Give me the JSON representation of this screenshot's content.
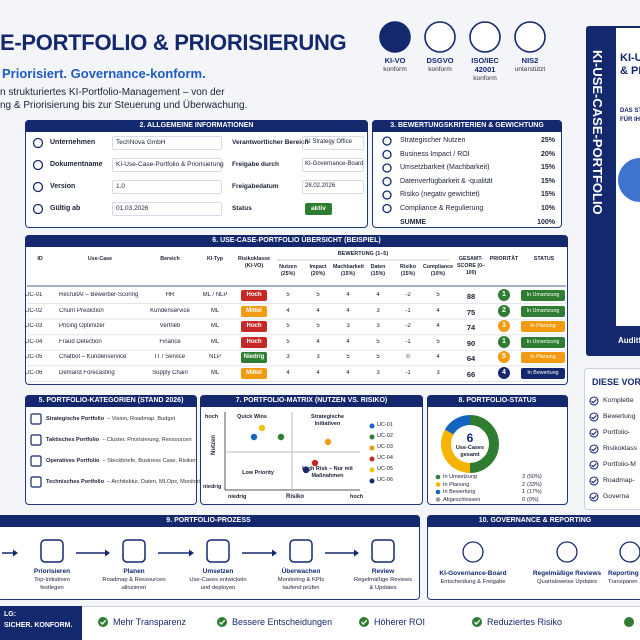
{
  "header": {
    "title": "E-PORTFOLIO & PRIORISIERUNG",
    "subtitle": "Priorisiert. Governance-konform.",
    "description": [
      "n strukturiertes KI-Portfolio-Management – von der",
      "ng & Priorisierung bis zur Steuerung und Überwachung."
    ]
  },
  "badges": [
    {
      "label": "KI-VO",
      "sub": "konform"
    },
    {
      "label": "DSGVO",
      "sub": "konform"
    },
    {
      "label": "ISO/IEC 42001",
      "sub": "konform"
    },
    {
      "label": "NIS2",
      "sub": "unterstützt"
    }
  ],
  "book": {
    "spine": "KI-USE-CASE-PORTFOLIO",
    "cover": [
      "KI-U",
      "& PRI"
    ],
    "cover_text": [
      "DAS STR",
      "FÜR IHR"
    ],
    "footer": "Auditfähi"
  },
  "info": {
    "title": "2. ALLGEMEINE INFORMATIONEN",
    "left": [
      [
        "Unternehmen",
        "TechNova GmbH"
      ],
      [
        "Dokumentname",
        "KI-Use-Case-Portfolio & Priorisierung"
      ],
      [
        "Version",
        "1.0"
      ],
      [
        "Gültig ab",
        "01.03.2026"
      ]
    ],
    "right": [
      [
        "Verantwortlicher Bereich",
        "AI Strategy Office"
      ],
      [
        "Freigabe durch",
        "KI-Governance-Board"
      ],
      [
        "Freigabedatum",
        "28.02.2026"
      ],
      [
        "Status",
        "aktiv"
      ]
    ]
  },
  "criteria": {
    "title": "3. BEWERTUNGSKRITERIEN & GEWICHTUNG",
    "items": [
      [
        "Strategischer Nutzen",
        "25%"
      ],
      [
        "Business Impact / ROI",
        "20%"
      ],
      [
        "Umsetzbarkeit (Machbarkeit)",
        "15%"
      ],
      [
        "Datenverfügbarkeit & -qualität",
        "15%"
      ],
      [
        "Risiko (negativ gewichtet)",
        "15%"
      ],
      [
        "Compliance & Regulierung",
        "10%"
      ]
    ],
    "total": [
      "SUMME",
      "100%"
    ]
  },
  "table": {
    "title": "6. USE-CASE-PORTFOLIO ÜBERSICHT (BEISPIEL)",
    "group_header": "BEWERTUNG (1–5)",
    "columns": [
      "ID",
      "Use-Case",
      "Bereich",
      "KI-Typ",
      "Risikoklasse (KI-VO)",
      "Nutzen (25%)",
      "Impact (20%)",
      "Machbarkeit (15%)",
      "Daten (15%)",
      "Risiko (15%)",
      "Compliance (10%)",
      "GESAMT-SCORE (0–100)",
      "PRIORITÄT",
      "STATUS"
    ],
    "rows": [
      {
        "cells": [
          "UC-01",
          "RecruitAI – Bewerber-Scoring",
          "HR",
          "ML / NLP",
          "Hoch",
          5,
          5,
          4,
          4,
          -2,
          5,
          88,
          1,
          "In Umsetzung"
        ],
        "risk_color": "#c62828",
        "priority_color": "#2e7d32",
        "status_color": "#2e7d32"
      },
      {
        "cells": [
          "UC-02",
          "Churn Prediction",
          "Kundenservice",
          "ML",
          "Mittel",
          4,
          4,
          4,
          3,
          -1,
          4,
          75,
          2,
          "In Umsetzung"
        ],
        "risk_color": "#f29b11",
        "priority_color": "#2e7d32",
        "status_color": "#2e7d32"
      },
      {
        "cells": [
          "UC-03",
          "Pricing Optimizer",
          "Vertrieb",
          "ML",
          "Hoch",
          5,
          5,
          3,
          3,
          -2,
          4,
          74,
          3,
          "In Planung"
        ],
        "risk_color": "#c62828",
        "priority_color": "#f29b11",
        "status_color": "#f29b11"
      },
      {
        "cells": [
          "UC-04",
          "Fraud Detection",
          "Finance",
          "ML",
          "Hoch",
          5,
          4,
          4,
          5,
          -1,
          5,
          90,
          1,
          "In Umsetzung"
        ],
        "risk_color": "#c62828",
        "priority_color": "#2e7d32",
        "status_color": "#2e7d32"
      },
      {
        "cells": [
          "UC-05",
          "Chatbot – Kundenservice",
          "IT / Service",
          "NLP",
          "Niedrig",
          3,
          3,
          5,
          5,
          0,
          4,
          64,
          5,
          "In Planung"
        ],
        "risk_color": "#2e7d32",
        "priority_color": "#f29b11",
        "status_color": "#f29b11"
      },
      {
        "cells": [
          "UC-06",
          "Demand Forecasting",
          "Supply Chain",
          "ML",
          "Mittel",
          4,
          4,
          4,
          3,
          -1,
          3,
          66,
          4,
          "In Bewertung"
        ],
        "risk_color": "#f29b11",
        "priority_color": "#14286e",
        "status_color": "#14286e"
      }
    ]
  },
  "categories": {
    "title": "5. PORTFOLIO-KATEGORIEN (STAND 2026)",
    "items": [
      {
        "name": "Strategische Portfolio",
        "desc": "– Vision, Roadmap, Budget"
      },
      {
        "name": "Taktisches Portfolio",
        "desc": "– Cluster, Priorisierung, Ressourcen"
      },
      {
        "name": "Operatives Portfolio",
        "desc": "– Steckbriefe, Business Case, Risiken"
      },
      {
        "name": "Technisches Portfolio",
        "desc": "– Architektur, Daten, MLOps, Monitoring"
      }
    ]
  },
  "matrix": {
    "title": "7. PORTFOLIO-MATRIX (NUTZEN VS. RISIKO)",
    "y_axis": "Nutzen",
    "x_axis": "Risiko",
    "y_high": "hoch",
    "y_low": "niedrig",
    "x_low": "niedrig",
    "x_high": "hoch",
    "quadrants": [
      "Quick Wins",
      "Strategische Initiativen",
      "Low Priority",
      "High Risk – Nur mit Maßnahmen"
    ],
    "legend": [
      {
        "name": "UC-01",
        "color": "#1565c0"
      },
      {
        "name": "UC-02",
        "color": "#2e7d32"
      },
      {
        "name": "UC-03",
        "color": "#f29b11"
      },
      {
        "name": "UC-04",
        "color": "#c62828"
      },
      {
        "name": "UC-05",
        "color": "#f4c20d"
      },
      {
        "name": "UC-06",
        "color": "#14286e"
      }
    ]
  },
  "status": {
    "title": "8. PORTFOLIO-STATUS",
    "total": 6,
    "total_label": "Use-Cases gesamt",
    "items": [
      {
        "label": "In Umsetzung",
        "count": 3,
        "pct": "(50%)",
        "color": "#2e7d32"
      },
      {
        "label": "In Planung",
        "count": 2,
        "pct": "(33%)",
        "color": "#f4b400"
      },
      {
        "label": "In Bewertung",
        "count": 1,
        "pct": "(17%)",
        "color": "#1565c0"
      },
      {
        "label": "Abgeschlossen",
        "count": 0,
        "pct": "(0%)",
        "color": "#9e9e9e"
      }
    ]
  },
  "process": {
    "title": "9. PORTFOLIO-PROZESS",
    "steps": [
      {
        "title": "Priorisieren",
        "text": [
          "Top-Initiativen",
          "festlegen"
        ]
      },
      {
        "title": "Planen",
        "text": [
          "Roadmap & Ressourcen",
          "allozieren"
        ]
      },
      {
        "title": "Umsetzen",
        "text": [
          "Use-Cases entwickeln",
          "und deployen"
        ]
      },
      {
        "title": "Überwachen",
        "text": [
          "Monitoring & KPIs",
          "laufend prüfen"
        ]
      },
      {
        "title": "Review",
        "text": [
          "Regelmäßige Reviews",
          "& Updates"
        ]
      }
    ]
  },
  "governance": {
    "title": "10. GOVERNANCE & REPORTING",
    "items": [
      {
        "title": "KI-Governance-Board",
        "text": "Entscheidung & Freigabe"
      },
      {
        "title": "Regelmäßige Reviews",
        "text": "Quartalsweise Updates"
      },
      {
        "title": "Reporting",
        "text": "Transparen"
      }
    ]
  },
  "side_panel": {
    "title": "DIESE VOR",
    "items": [
      "Komplette",
      "Bewertung",
      "Portfolio-",
      "Risikoklass",
      "Portfolio-M",
      "Roadmap-",
      "Governa"
    ]
  },
  "benefits": {
    "lead": [
      "LG:",
      "SICHER. KONFORM."
    ],
    "items": [
      "Mehr Transparenz",
      "Bessere Entscheidungen",
      "Höherer ROI",
      "Reduziertes Risiko"
    ]
  }
}
